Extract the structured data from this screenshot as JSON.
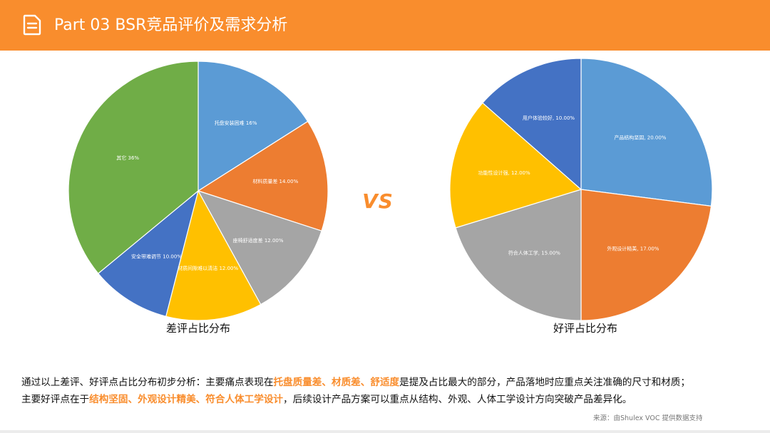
{
  "header": {
    "title": "Part 03  BSR竞品评价及需求分析",
    "icon": "document-icon",
    "bg_color": "#f98d2d"
  },
  "vs_text": "VS",
  "chart_data": [
    {
      "type": "pie",
      "title": "差评占比分布",
      "start_angle_deg": 0,
      "direction": "clockwise",
      "slices": [
        {
          "label": "托盘安装困难 16%",
          "name": "托盘安装困难",
          "value": 16,
          "color": "#5b9bd5"
        },
        {
          "label": "材料质量差 14.00%",
          "name": "材料质量差",
          "value": 14,
          "color": "#ed7d31"
        },
        {
          "label": "座椅舒适度差 12.00%",
          "name": "座椅舒适度差",
          "value": 12,
          "color": "#a5a5a5"
        },
        {
          "label": "材质间隙难以清洁 12.00%",
          "name": "材质间隙难以清洁",
          "value": 12,
          "color": "#ffc000"
        },
        {
          "label": "安全带难调节 10.00%",
          "name": "安全带难调节",
          "value": 10,
          "color": "#4472c4"
        },
        {
          "label": "其它 36%",
          "name": "其它",
          "value": 36,
          "color": "#70ad47"
        }
      ]
    },
    {
      "type": "pie",
      "title": "好评占比分布",
      "start_angle_deg": 0,
      "direction": "clockwise",
      "slices": [
        {
          "label": "产品结构坚固, 20.00%",
          "name": "产品结构坚固",
          "value": 20,
          "color": "#5b9bd5"
        },
        {
          "label": "外观设计精美, 17.00%",
          "name": "外观设计精美",
          "value": 17,
          "color": "#ed7d31"
        },
        {
          "label": "符合人体工学, 15.00%",
          "name": "符合人体工学",
          "value": 15,
          "color": "#a5a5a5"
        },
        {
          "label": "功能性设计强, 12.00%",
          "name": "功能性设计强",
          "value": 12,
          "color": "#ffc000"
        },
        {
          "label": "用户体验较好, 10.00%",
          "name": "用户体验较好",
          "value": 10,
          "color": "#4472c4"
        }
      ]
    }
  ],
  "summary": {
    "line1": {
      "part1": "通过以上差评、好评点占比分布初步分析：主要痛点表现在",
      "highlight": "托盘质量差、材质差、舒适度",
      "part2": "是提及占比最大的部分，产品落地时应重点关注准确的尺寸和材质；"
    },
    "line2": {
      "part1": "主要好评点在于",
      "highlight": "结构坚固、外观设计精美、符合人体工学设计",
      "part2": "，后续设计产品方案可以重点从结构、外观、人体工学设计方向突破产品差异化。"
    }
  },
  "source": "来源：由Shulex VOC 提供数据支持"
}
